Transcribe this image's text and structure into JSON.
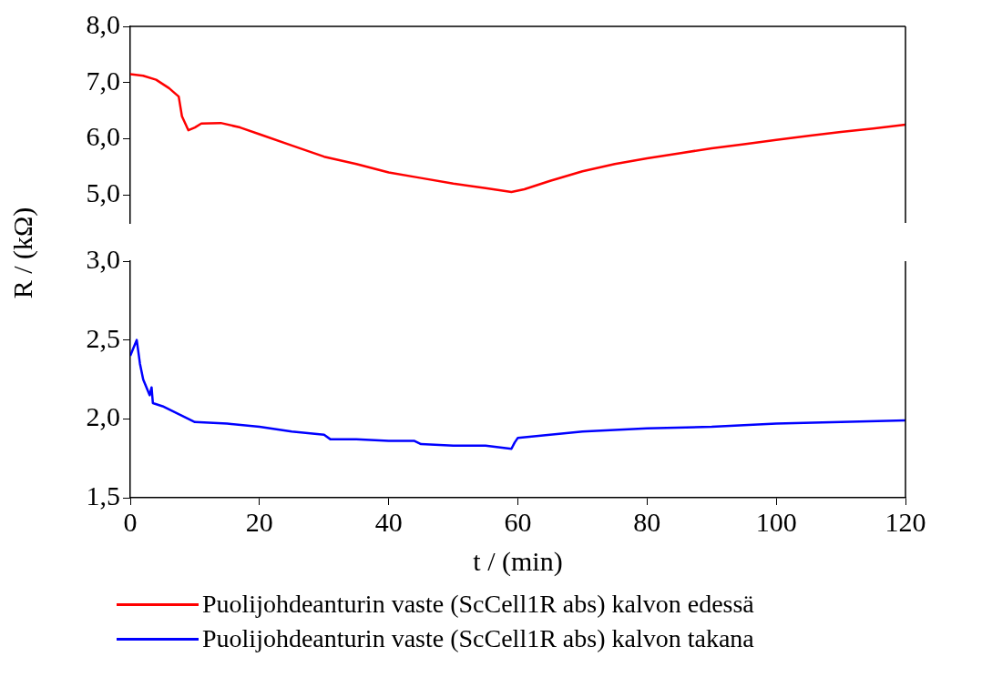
{
  "chart_data": [
    {
      "type": "line",
      "ylabel": "R / (kΩ)",
      "xlim": [
        0,
        120
      ],
      "ylim": [
        4.5,
        8.0
      ],
      "yticks": [
        {
          "value": 5,
          "label": "5,0"
        },
        {
          "value": 6,
          "label": "6,0"
        },
        {
          "value": 7,
          "label": "7,0"
        },
        {
          "value": 8,
          "label": "8,0"
        }
      ],
      "tick_labels": "y",
      "grid": false,
      "legend": "bottom",
      "marker": "none",
      "series": [
        {
          "name": "Puolijohdeanturin vaste (ScCell1R abs) kalvon edessä",
          "color": "#ff0000",
          "x": [
            0,
            2,
            4,
            6,
            7.5,
            8,
            9,
            10,
            11,
            14,
            17,
            20,
            25,
            30,
            35,
            40,
            45,
            50,
            55,
            59,
            61,
            65,
            70,
            75,
            80,
            85,
            90,
            95,
            100,
            105,
            110,
            115,
            120
          ],
          "values": [
            7.15,
            7.12,
            7.05,
            6.9,
            6.75,
            6.4,
            6.15,
            6.2,
            6.27,
            6.28,
            6.2,
            6.08,
            5.88,
            5.68,
            5.55,
            5.4,
            5.3,
            5.2,
            5.12,
            5.05,
            5.1,
            5.25,
            5.42,
            5.55,
            5.65,
            5.74,
            5.83,
            5.9,
            5.98,
            6.05,
            6.12,
            6.18,
            6.25
          ]
        }
      ]
    },
    {
      "type": "line",
      "xlabel": "t / (min)",
      "xlim": [
        0,
        120
      ],
      "xticks": [
        0,
        20,
        40,
        60,
        80,
        100,
        120
      ],
      "ylim": [
        1.5,
        3.0
      ],
      "yticks": [
        {
          "value": 1.5,
          "label": "1,5"
        },
        {
          "value": 2,
          "label": "2,0"
        },
        {
          "value": 2.5,
          "label": "2,5"
        },
        {
          "value": 3,
          "label": "3,0"
        }
      ],
      "grid": false,
      "legend": "bottom",
      "marker": "none",
      "series": [
        {
          "name": "Puolijohdeanturin vaste (ScCell1R abs) kalvon takana",
          "color": "#0000ff",
          "x": [
            0,
            0.5,
            1,
            1.5,
            2,
            3,
            3.3,
            3.5,
            5,
            8,
            10,
            15,
            20,
            25,
            30,
            31,
            35,
            40,
            44,
            45,
            50,
            55,
            59,
            59.5,
            60,
            65,
            70,
            80,
            90,
            100,
            110,
            120
          ],
          "values": [
            2.4,
            2.45,
            2.5,
            2.35,
            2.25,
            2.15,
            2.2,
            2.1,
            2.08,
            2.02,
            1.98,
            1.97,
            1.95,
            1.92,
            1.9,
            1.87,
            1.87,
            1.86,
            1.86,
            1.84,
            1.83,
            1.83,
            1.81,
            1.85,
            1.88,
            1.9,
            1.92,
            1.94,
            1.95,
            1.97,
            1.98,
            1.99
          ]
        }
      ]
    }
  ]
}
